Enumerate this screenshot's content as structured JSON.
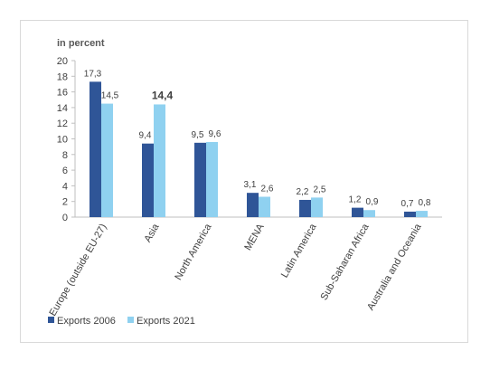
{
  "chart_data": {
    "type": "bar",
    "ylabel": "in percent",
    "ylim": [
      0,
      20
    ],
    "yticks": [
      "0",
      "2",
      "4",
      "6",
      "8",
      "10",
      "12",
      "14",
      "16",
      "18",
      "20"
    ],
    "grid": false,
    "legend_position": "bottom-left",
    "categories": [
      "Europe (outside EU-27)",
      "Asia",
      "North America",
      "MENA",
      "Latin America",
      "Sub-Saharan Africa",
      "Australia and Oceania"
    ],
    "series": [
      {
        "name": "Exports 2006",
        "color": "#2f5597",
        "values": [
          17.3,
          9.4,
          9.5,
          3.1,
          2.2,
          1.2,
          0.7
        ],
        "labels": [
          "17,3",
          "9,4",
          "9,5",
          "3,1",
          "2,2",
          "1,2",
          "0,7"
        ]
      },
      {
        "name": "Exports 2021",
        "color": "#8fd1f0",
        "values": [
          14.5,
          14.4,
          9.6,
          2.6,
          2.5,
          0.9,
          0.8
        ],
        "labels": [
          "14,5",
          "14,4",
          "9,6",
          "2,6",
          "2,5",
          "0,9",
          "0,8"
        ]
      }
    ]
  }
}
